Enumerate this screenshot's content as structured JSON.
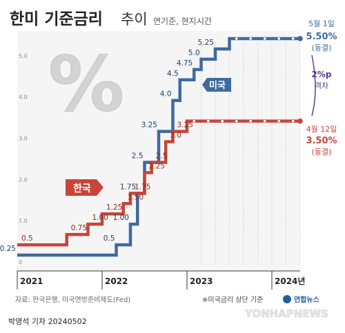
{
  "header": {
    "title_bold": "한미 기준금리",
    "title_light": "추이",
    "subtitle": "연기준, 현지시간"
  },
  "footer": {
    "source": "자료: 한국은행, 미국연방준비제도(Fed)",
    "note": "※미국금리 상단 기준",
    "logo_text": "연합뉴스",
    "watermark": "YONHAPNEWS",
    "byline": "박영석 기자 20240502"
  },
  "colors": {
    "us": "#3f6aa0",
    "korea": "#c94438",
    "background": "#ffffff",
    "panel": "#f5f5f5",
    "gap_text": "#5a3d8a"
  },
  "chart_data": {
    "type": "line",
    "title": "한미 기준금리 추이",
    "ylim": [
      0,
      5.6
    ],
    "yticks": [
      "0",
      "1.0",
      "2.0",
      "3.0",
      "4.0",
      "5.0"
    ],
    "xlim": [
      "2021-01",
      "2024-05"
    ],
    "xticks": [
      "2021",
      "2022",
      "2023",
      "2024년"
    ],
    "grid": "vertical-dotted",
    "series": [
      {
        "name": "미국",
        "color": "#3f6aa0",
        "x": [
          "2021-01",
          "2022-03",
          "2022-05",
          "2022-06",
          "2022-07",
          "2022-09",
          "2022-11",
          "2022-12",
          "2023-02",
          "2023-03",
          "2023-05",
          "2023-07",
          "2024-05"
        ],
        "y": [
          0.25,
          0.5,
          1.0,
          1.75,
          2.5,
          3.25,
          4.0,
          4.5,
          4.75,
          5.0,
          5.25,
          5.5,
          5.5
        ],
        "labels": [
          "0.25",
          "0.5",
          "1.00",
          "1.75",
          "2.5",
          "3.25",
          "4.0",
          "4.5",
          "4.75",
          "5.0",
          "5.25",
          "",
          ""
        ]
      },
      {
        "name": "한국",
        "color": "#c94438",
        "x": [
          "2021-01",
          "2021-08",
          "2021-11",
          "2022-01",
          "2022-04",
          "2022-05",
          "2022-07",
          "2022-08",
          "2022-10",
          "2022-11",
          "2023-01",
          "2024-05"
        ],
        "y": [
          0.5,
          0.75,
          1.0,
          1.25,
          1.5,
          1.75,
          2.25,
          2.5,
          3.0,
          3.25,
          3.5,
          3.5
        ],
        "labels": [
          "0.5",
          "0.75",
          "1.00",
          "1.25",
          "1.50",
          "1.75",
          "2.25",
          "2.5",
          "3.0",
          "3.25",
          "",
          ""
        ]
      }
    ],
    "annotations": {
      "us_end_date": "5월 1일",
      "us_end_value": "5.50%",
      "us_end_status": "(동결)",
      "kr_end_date": "4월 12일",
      "kr_end_value": "3.50%",
      "kr_end_status": "(동결)",
      "gap_value": "2%p",
      "gap_label": "격차",
      "us_tag": "미국",
      "kr_tag": "한국",
      "percent_mark": "%"
    }
  }
}
